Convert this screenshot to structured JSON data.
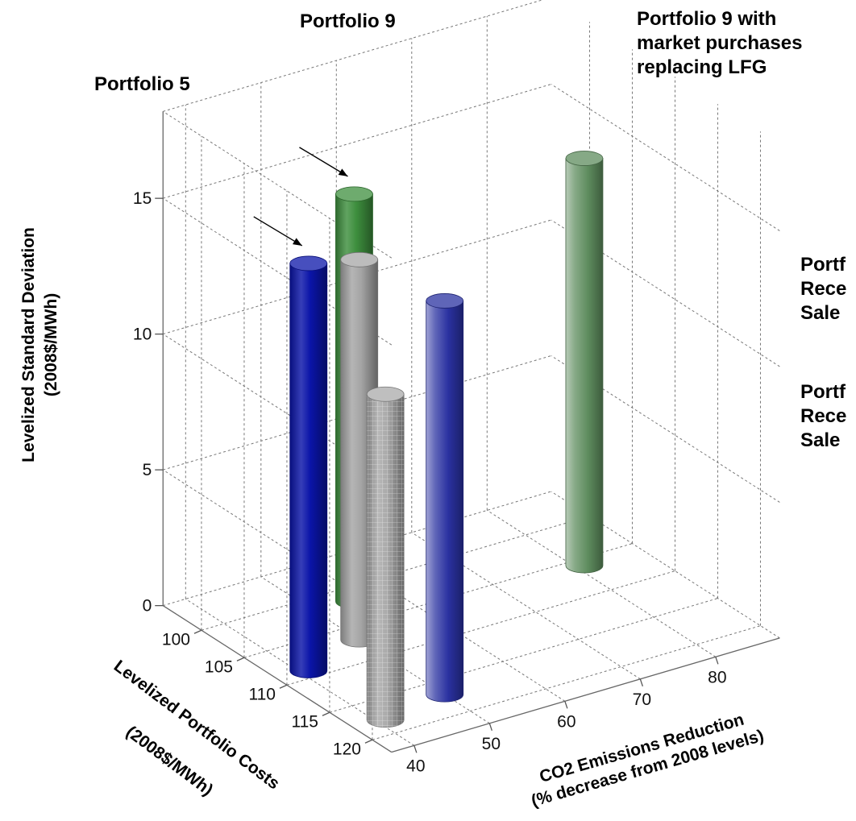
{
  "chart_data": {
    "type": "bar3d",
    "title": "",
    "zlabel": [
      "Levelized Standard Deviation",
      "(2008$/MWh)"
    ],
    "xlabel": [
      "Levelized Portfolio Costs",
      "(2008$/MWh)"
    ],
    "ylabel": [
      "CO2 Emissions Reduction",
      "(% decrease from 2008 levels)"
    ],
    "x_ticks": [
      "100",
      "105",
      "110",
      "115",
      "120"
    ],
    "y_ticks": [
      "40",
      "50",
      "60",
      "70",
      "80"
    ],
    "z_ticks": [
      "0",
      "5",
      "10",
      "15"
    ],
    "zlim": [
      0,
      15
    ],
    "grid": true,
    "points": [
      {
        "cost": 118,
        "co2": 41,
        "stdev": 12,
        "color": "#a9a9a9",
        "pattern": "mesh"
      },
      {
        "cost": 109,
        "co2": 41,
        "stdev": 15,
        "color": "#0a14a8",
        "pattern": "solid"
      },
      {
        "cost": 117,
        "co2": 50,
        "stdev": 14.5,
        "color": "#2a31a0",
        "pattern": "faded"
      },
      {
        "cost": 107,
        "co2": 50,
        "stdev": 14,
        "color": "#a5a5a5",
        "pattern": "solid"
      },
      {
        "cost": 102,
        "co2": 55,
        "stdev": 15,
        "color": "#3e8f3e",
        "pattern": "solid"
      },
      {
        "cost": 106,
        "co2": 81,
        "stdev": 15,
        "color": "#5e8c5e",
        "pattern": "faded"
      }
    ],
    "annotations": [
      {
        "lines": [
          "Portfolio 5"
        ],
        "arrow_to_bar": 1
      },
      {
        "lines": [
          "Portfolio 9"
        ],
        "arrow_to_bar": 4
      },
      {
        "lines": [
          "Portfolio 9 with",
          "market purchases",
          "replacing LFG"
        ]
      },
      {
        "lines": [
          "Portf",
          "Rece",
          "Sale"
        ]
      },
      {
        "lines": [
          "Portf",
          "Rece",
          "Sale"
        ]
      }
    ]
  }
}
